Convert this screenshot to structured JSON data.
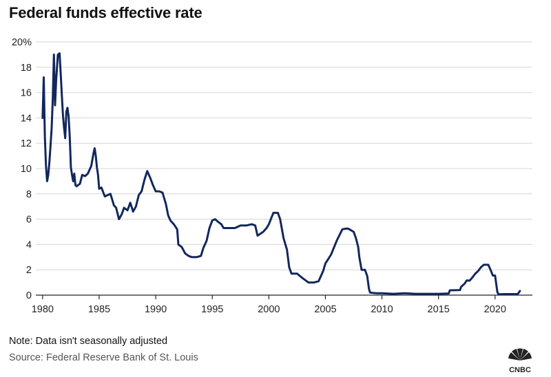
{
  "header": {
    "title": "Federal funds effective rate"
  },
  "footer": {
    "note": "Note: Data isn't seasonally adjusted",
    "source": "Source: Federal Reserve Bank of St. Louis"
  },
  "logo": {
    "text": "CNBC"
  },
  "colors": {
    "line": "#12275c",
    "grid": "#d6d6d6",
    "axis": "#222222"
  },
  "chart_data": {
    "type": "line",
    "title": "Federal funds effective rate",
    "xlabel": "",
    "ylabel": "",
    "xlim": [
      1979.4,
      2023.3
    ],
    "ylim": [
      0,
      20
    ],
    "grid": true,
    "x_ticks": [
      1980,
      1985,
      1990,
      1995,
      2000,
      2005,
      2010,
      2015,
      2020
    ],
    "x_tick_labels": [
      "1980",
      "1985",
      "1990",
      "1995",
      "2000",
      "2005",
      "2010",
      "2015",
      "2020"
    ],
    "y_ticks": [
      0,
      2,
      4,
      6,
      8,
      10,
      12,
      14,
      16,
      18,
      20
    ],
    "y_tick_labels": [
      "0",
      "2",
      "4",
      "6",
      "8",
      "10",
      "12",
      "14",
      "16",
      "18",
      "20%"
    ],
    "series": [
      {
        "name": "Federal funds effective rate",
        "x": [
          1980.0,
          1980.1,
          1980.2,
          1980.3,
          1980.4,
          1980.5,
          1980.6,
          1980.7,
          1980.8,
          1980.9,
          1981.0,
          1981.1,
          1981.2,
          1981.35,
          1981.5,
          1981.6,
          1981.7,
          1981.8,
          1981.9,
          1982.0,
          1982.1,
          1982.2,
          1982.3,
          1982.4,
          1982.5,
          1982.6,
          1982.7,
          1982.8,
          1982.9,
          1983.0,
          1983.3,
          1983.5,
          1983.75,
          1984.0,
          1984.3,
          1984.5,
          1984.6,
          1984.7,
          1984.8,
          1984.9,
          1985.0,
          1985.2,
          1985.5,
          1985.75,
          1986.0,
          1986.3,
          1986.5,
          1986.75,
          1987.0,
          1987.2,
          1987.5,
          1987.75,
          1988.0,
          1988.25,
          1988.5,
          1988.75,
          1989.0,
          1989.25,
          1989.5,
          1989.75,
          1990.0,
          1990.3,
          1990.6,
          1990.9,
          1991.1,
          1991.3,
          1991.6,
          1991.9,
          1992.0,
          1992.3,
          1992.6,
          1992.9,
          1993.2,
          1993.6,
          1994.0,
          1994.2,
          1994.5,
          1994.75,
          1995.0,
          1995.25,
          1995.5,
          1995.8,
          1996.0,
          1996.5,
          1997.0,
          1997.5,
          1998.0,
          1998.5,
          1998.8,
          1999.0,
          1999.5,
          1999.8,
          2000.0,
          2000.4,
          2000.8,
          2001.0,
          2001.3,
          2001.6,
          2001.8,
          2002.0,
          2002.5,
          2002.9,
          2003.2,
          2003.5,
          2004.0,
          2004.4,
          2004.8,
          2005.0,
          2005.5,
          2006.0,
          2006.5,
          2006.8,
          2007.0,
          2007.5,
          2007.7,
          2007.9,
          2008.0,
          2008.2,
          2008.5,
          2008.7,
          2008.85,
          2008.95,
          2009.5,
          2010.0,
          2011.0,
          2012.0,
          2013.0,
          2014.0,
          2015.0,
          2015.9,
          2016.0,
          2016.9,
          2017.0,
          2017.3,
          2017.5,
          2017.75,
          2018.0,
          2018.25,
          2018.5,
          2018.75,
          2019.0,
          2019.4,
          2019.6,
          2019.8,
          2020.0,
          2020.2,
          2020.3,
          2021.0,
          2021.5,
          2022.0,
          2022.2
        ],
        "values": [
          14.0,
          17.2,
          12.5,
          10.2,
          9.0,
          9.5,
          10.5,
          11.8,
          13.2,
          15.5,
          19.0,
          15.0,
          17.0,
          19.0,
          19.1,
          17.5,
          15.8,
          14.2,
          13.2,
          12.4,
          14.5,
          14.8,
          14.1,
          12.5,
          10.1,
          9.5,
          9.0,
          9.6,
          8.7,
          8.6,
          8.8,
          9.5,
          9.4,
          9.6,
          10.2,
          11.2,
          11.6,
          11.0,
          10.1,
          9.5,
          8.4,
          8.5,
          7.8,
          7.9,
          8.0,
          7.1,
          6.9,
          6.0,
          6.4,
          6.9,
          6.7,
          7.3,
          6.6,
          7.0,
          7.9,
          8.2,
          9.1,
          9.8,
          9.3,
          8.7,
          8.2,
          8.2,
          8.1,
          7.2,
          6.3,
          5.9,
          5.6,
          5.2,
          4.0,
          3.8,
          3.3,
          3.1,
          3.0,
          3.0,
          3.1,
          3.7,
          4.3,
          5.3,
          5.9,
          6.0,
          5.8,
          5.6,
          5.3,
          5.3,
          5.3,
          5.5,
          5.5,
          5.6,
          5.5,
          4.7,
          5.0,
          5.3,
          5.6,
          6.5,
          6.5,
          6.0,
          4.5,
          3.6,
          2.2,
          1.7,
          1.7,
          1.4,
          1.2,
          1.0,
          1.0,
          1.1,
          1.9,
          2.5,
          3.2,
          4.3,
          5.2,
          5.25,
          5.26,
          5.0,
          4.5,
          3.8,
          3.0,
          2.0,
          2.0,
          1.5,
          0.5,
          0.2,
          0.15,
          0.15,
          0.1,
          0.15,
          0.1,
          0.1,
          0.1,
          0.13,
          0.38,
          0.4,
          0.66,
          0.9,
          1.16,
          1.15,
          1.4,
          1.7,
          1.9,
          2.2,
          2.4,
          2.4,
          2.0,
          1.55,
          1.55,
          0.25,
          0.07,
          0.08,
          0.08,
          0.08,
          0.33
        ]
      }
    ]
  }
}
